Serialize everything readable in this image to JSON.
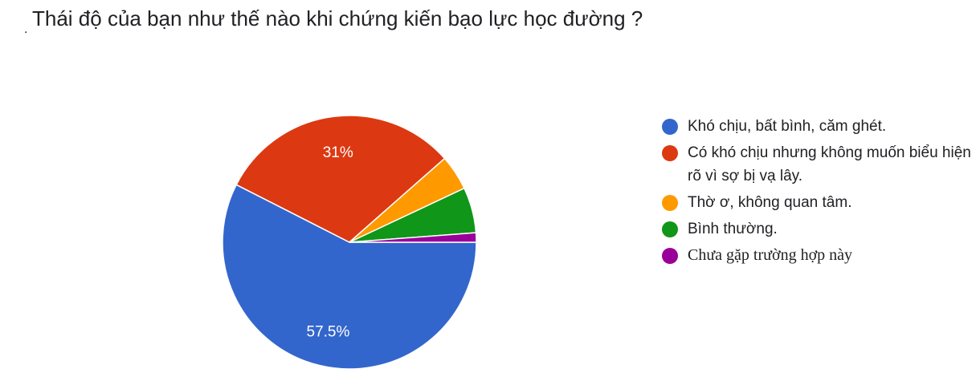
{
  "title": "Thái độ của bạn như thế nào khi chứng kiến bạo lực học đường ?",
  "chart_data": {
    "type": "pie",
    "title": "Thái độ của bạn như thế nào khi chứng kiến bạo lực học đường ?",
    "legend_position": "right",
    "slices": [
      {
        "label": "Khó chịu, bất bình, căm ghét.",
        "value": 57.5,
        "display": "57.5%",
        "color": "#3366cc"
      },
      {
        "label": "Có khó chịu nhưng không muốn biểu hiện rõ vì sợ bị vạ lây.",
        "value": 31,
        "display": "31%",
        "color": "#dc3912"
      },
      {
        "label": "Thờ ơ, không quan tâm.",
        "value": 4.5,
        "display": "",
        "color": "#ff9900"
      },
      {
        "label": "Bình thường.",
        "value": 5.8,
        "display": "",
        "color": "#109618"
      },
      {
        "label": "Chưa gặp trường hợp này",
        "value": 1.2,
        "display": "",
        "color": "#990099"
      }
    ]
  }
}
